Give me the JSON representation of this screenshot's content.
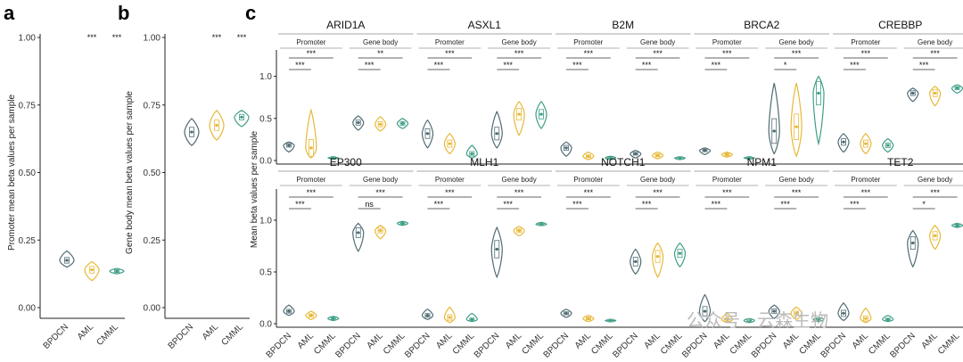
{
  "colors": {
    "BPDCN": "#4f6b73",
    "AML": "#e8b838",
    "CMML": "#3f9e86"
  },
  "watermark": {
    "text": "公众号 · 云森生物"
  },
  "chart_data": [
    {
      "panel": "a",
      "type": "violin",
      "ylabel": "Promoter mean beta values per sample",
      "ylim": [
        0,
        1.0
      ],
      "yticks": [
        "0.00",
        "0.25",
        "0.50",
        "0.75",
        "1.00"
      ],
      "categories": [
        "BPDCN",
        "AML",
        "CMML"
      ],
      "medians": [
        0.175,
        0.14,
        0.135
      ],
      "spread": [
        [
          0.15,
          0.21
        ],
        [
          0.1,
          0.17
        ],
        [
          0.125,
          0.145
        ]
      ],
      "significance": [
        "",
        "***",
        "***"
      ]
    },
    {
      "panel": "b",
      "type": "violin",
      "ylabel": "Gene body mean beta values per sample",
      "ylim": [
        0,
        1.0
      ],
      "yticks": [
        "0.00",
        "0.25",
        "0.50",
        "0.75",
        "1.00"
      ],
      "categories": [
        "BPDCN",
        "AML",
        "CMML"
      ],
      "medians": [
        0.65,
        0.675,
        0.705
      ],
      "spread": [
        [
          0.6,
          0.7
        ],
        [
          0.62,
          0.73
        ],
        [
          0.67,
          0.73
        ]
      ],
      "significance": [
        "",
        "***",
        "***"
      ]
    },
    {
      "panel": "c",
      "type": "violin",
      "ylabel": "Mean beta values per sample",
      "ylim": [
        0,
        1.25
      ],
      "yticks": [
        "0.0",
        "0.5",
        "1.0"
      ],
      "categories": [
        "BPDCN",
        "AML",
        "CMML"
      ],
      "regions": [
        "Promoter",
        "Gene body"
      ],
      "genes": [
        {
          "name": "ARID1A",
          "promoter": {
            "medians": [
              0.18,
              0.15,
              0.03
            ],
            "spread": [
              [
                0.1,
                0.22
              ],
              [
                0.03,
                0.6
              ],
              [
                0.02,
                0.04
              ]
            ],
            "sig": [
              "***",
              "***"
            ]
          },
          "genebody": {
            "medians": [
              0.45,
              0.43,
              0.44
            ],
            "spread": [
              [
                0.36,
                0.53
              ],
              [
                0.35,
                0.52
              ],
              [
                0.38,
                0.5
              ]
            ],
            "sig": [
              "***",
              "**"
            ]
          }
        },
        {
          "name": "ASXL1",
          "promoter": {
            "medians": [
              0.32,
              0.2,
              0.08
            ],
            "spread": [
              [
                0.15,
                0.48
              ],
              [
                0.08,
                0.32
              ],
              [
                0.03,
                0.18
              ]
            ],
            "sig": [
              "***",
              "***"
            ]
          },
          "genebody": {
            "medians": [
              0.32,
              0.55,
              0.55
            ],
            "spread": [
              [
                0.15,
                0.58
              ],
              [
                0.3,
                0.7
              ],
              [
                0.38,
                0.7
              ]
            ],
            "sig": [
              "***",
              "***"
            ]
          }
        },
        {
          "name": "B2M",
          "promoter": {
            "medians": [
              0.15,
              0.05,
              0.03
            ],
            "spread": [
              [
                0.05,
                0.22
              ],
              [
                0.01,
                0.1
              ],
              [
                0.01,
                0.05
              ]
            ],
            "sig": [
              "***",
              "***"
            ]
          },
          "genebody": {
            "medians": [
              0.08,
              0.06,
              0.03
            ],
            "spread": [
              [
                0.03,
                0.12
              ],
              [
                0.02,
                0.1
              ],
              [
                0.01,
                0.04
              ]
            ],
            "sig": [
              "***",
              "***"
            ]
          }
        },
        {
          "name": "BRCA2",
          "promoter": {
            "medians": [
              0.12,
              0.07,
              0.03
            ],
            "spread": [
              [
                0.07,
                0.15
              ],
              [
                0.04,
                0.1
              ],
              [
                0.02,
                0.04
              ]
            ],
            "sig": [
              "***",
              "***"
            ]
          },
          "genebody": {
            "medians": [
              0.35,
              0.4,
              0.8
            ],
            "spread": [
              [
                0.08,
                0.92
              ],
              [
                0.05,
                0.92
              ],
              [
                0.2,
                1.0
              ]
            ],
            "sig": [
              "*",
              "***"
            ]
          }
        },
        {
          "name": "CREBBP",
          "promoter": {
            "medians": [
              0.22,
              0.2,
              0.18
            ],
            "spread": [
              [
                0.1,
                0.32
              ],
              [
                0.08,
                0.32
              ],
              [
                0.1,
                0.26
              ]
            ],
            "sig": [
              "***",
              "***"
            ]
          },
          "genebody": {
            "medians": [
              0.8,
              0.8,
              0.86
            ],
            "spread": [
              [
                0.7,
                0.86
              ],
              [
                0.65,
                0.88
              ],
              [
                0.8,
                0.9
              ]
            ],
            "sig": [
              "***",
              "***"
            ]
          }
        },
        {
          "name": "EP300",
          "promoter": {
            "medians": [
              0.12,
              0.08,
              0.05
            ],
            "spread": [
              [
                0.08,
                0.18
              ],
              [
                0.04,
                0.12
              ],
              [
                0.03,
                0.07
              ]
            ],
            "sig": [
              "***",
              "***"
            ]
          },
          "genebody": {
            "medians": [
              0.88,
              0.9,
              0.97
            ],
            "spread": [
              [
                0.7,
                0.97
              ],
              [
                0.82,
                0.95
              ],
              [
                0.95,
                0.99
              ]
            ],
            "sig": [
              "ns",
              "***"
            ]
          }
        },
        {
          "name": "MLH1",
          "promoter": {
            "medians": [
              0.08,
              0.06,
              0.04
            ],
            "spread": [
              [
                0.04,
                0.14
              ],
              [
                0.01,
                0.16
              ],
              [
                0.02,
                0.1
              ]
            ],
            "sig": [
              "***",
              "***"
            ]
          },
          "genebody": {
            "medians": [
              0.72,
              0.9,
              0.96
            ],
            "spread": [
              [
                0.45,
                0.93
              ],
              [
                0.85,
                0.94
              ],
              [
                0.95,
                0.98
              ]
            ],
            "sig": [
              "***",
              "***"
            ]
          }
        },
        {
          "name": "NOTCH1",
          "promoter": {
            "medians": [
              0.1,
              0.05,
              0.03
            ],
            "spread": [
              [
                0.06,
                0.14
              ],
              [
                0.02,
                0.08
              ],
              [
                0.02,
                0.04
              ]
            ],
            "sig": [
              "***",
              "***"
            ]
          },
          "genebody": {
            "medians": [
              0.6,
              0.65,
              0.68
            ],
            "spread": [
              [
                0.48,
                0.72
              ],
              [
                0.45,
                0.78
              ],
              [
                0.55,
                0.78
              ]
            ],
            "sig": [
              "***",
              "***"
            ]
          }
        },
        {
          "name": "NPM1",
          "promoter": {
            "medians": [
              0.12,
              0.04,
              0.03
            ],
            "spread": [
              [
                0.02,
                0.28
              ],
              [
                0.01,
                0.1
              ],
              [
                0.01,
                0.05
              ]
            ],
            "sig": [
              "***",
              "***"
            ]
          },
          "genebody": {
            "medians": [
              0.12,
              0.1,
              0.04
            ],
            "spread": [
              [
                0.05,
                0.18
              ],
              [
                0.04,
                0.16
              ],
              [
                0.02,
                0.06
              ]
            ],
            "sig": [
              "***",
              "***"
            ]
          }
        },
        {
          "name": "TET2",
          "promoter": {
            "medians": [
              0.1,
              0.05,
              0.04
            ],
            "spread": [
              [
                0.03,
                0.2
              ],
              [
                0.01,
                0.15
              ],
              [
                0.02,
                0.08
              ]
            ],
            "sig": [
              "***",
              "***"
            ]
          },
          "genebody": {
            "medians": [
              0.78,
              0.85,
              0.95
            ],
            "spread": [
              [
                0.55,
                0.9
              ],
              [
                0.72,
                0.95
              ],
              [
                0.93,
                0.97
              ]
            ],
            "sig": [
              "*",
              "***"
            ]
          }
        }
      ]
    }
  ]
}
